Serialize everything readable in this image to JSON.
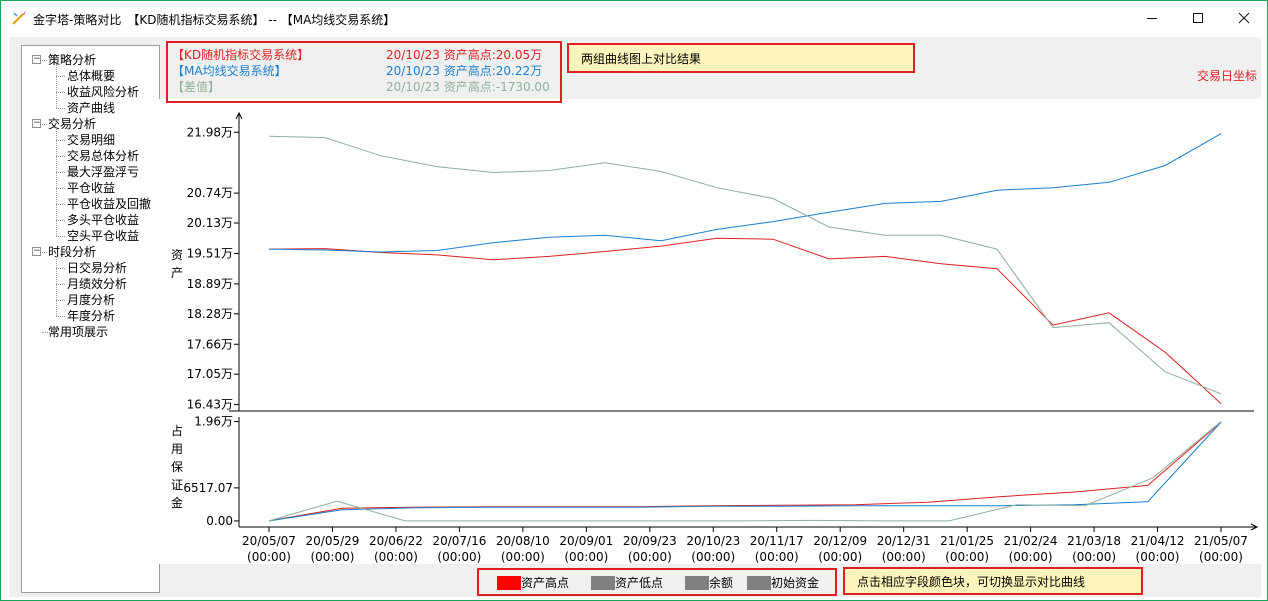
{
  "window": {
    "title": "金字塔-策略对比　【KD随机指标交易系统】 -- 【MA均线交易系统】"
  },
  "tree": {
    "groups": [
      {
        "label": "策略分析",
        "expanded": true,
        "children": [
          "总体概要",
          "收益风险分析",
          "资产曲线"
        ]
      },
      {
        "label": "交易分析",
        "expanded": true,
        "children": [
          "交易明细",
          "交易总体分析",
          "最大浮盈浮亏",
          "平仓收益",
          "平仓收益及回撤",
          "多头平仓收益",
          "空头平仓收益"
        ]
      },
      {
        "label": "时段分析",
        "expanded": true,
        "children": [
          "日交易分析",
          "月绩效分析",
          "月度分析",
          "年度分析"
        ]
      },
      {
        "label": "常用项展示",
        "expanded": false,
        "children": []
      }
    ]
  },
  "info": {
    "rows": [
      {
        "name": "【KD随机指标交易系统】",
        "value": "20/10/23 资产高点:20.05万",
        "color": "#e02020"
      },
      {
        "name": "【MA均线交易系统】",
        "value": "20/10/23 资产高点:20.22万",
        "color": "#1a7fd0"
      },
      {
        "name": "【差值】",
        "value": "20/10/23 资产高点:-1730.00",
        "color": "#8fb09a"
      }
    ]
  },
  "notes": {
    "top": "两组曲线图上对比结果",
    "bottom": "点击相应字段颜色块，可切换显示对比曲线"
  },
  "axis_mode_label": "交易日坐标",
  "legend": [
    {
      "label": "资产高点",
      "color": "#ff0000"
    },
    {
      "label": "资产低点",
      "color": "#808080"
    },
    {
      "label": "余额",
      "color": "#808080"
    },
    {
      "label": "初始资金",
      "color": "#808080"
    }
  ],
  "chart_data": [
    {
      "type": "line",
      "ylabel": "资产",
      "y_ticks": [
        "21.98万",
        "20.74万",
        "20.13万",
        "19.51万",
        "18.89万",
        "18.28万",
        "17.66万",
        "17.05万",
        "16.43万"
      ],
      "y_tick_values": [
        219800,
        207400,
        201300,
        195100,
        188900,
        182800,
        176600,
        170500,
        164300
      ],
      "ylim": [
        163000,
        222500
      ],
      "x_labels": [
        "20/05/07",
        "20/05/29",
        "20/06/22",
        "20/07/16",
        "20/08/10",
        "20/09/01",
        "20/09/23",
        "20/10/23",
        "20/11/17",
        "20/12/09",
        "20/12/31",
        "21/01/25",
        "21/02/24",
        "21/03/18",
        "21/04/12",
        "21/05/07"
      ],
      "x_sublabel": "(00:00)",
      "series": [
        {
          "name": "【KD随机指标交易系统】",
          "color": "#e02020",
          "values": [
            196000,
            196100,
            195300,
            194800,
            193800,
            194500,
            195500,
            196600,
            198200,
            198000,
            194000,
            194500,
            193000,
            192000,
            180500,
            183000,
            175000,
            164500
          ]
        },
        {
          "name": "【MA均线交易系统】",
          "color": "#1a7fd0",
          "values": [
            196000,
            195800,
            195400,
            195700,
            197300,
            198400,
            198800,
            197700,
            200000,
            201600,
            203500,
            205300,
            205700,
            208000,
            208500,
            209600,
            213000,
            219500
          ]
        },
        {
          "name": "【差值】",
          "color": "#8fb09a",
          "values": [
            219000,
            218700,
            215000,
            212800,
            211600,
            212000,
            213600,
            211800,
            208500,
            206300,
            200500,
            198800,
            198800,
            196000,
            180000,
            181000,
            171000,
            166500
          ]
        }
      ]
    },
    {
      "type": "line",
      "ylabel": "占用保证金",
      "y_ticks": [
        "1.96万",
        "6517.07",
        "0.00"
      ],
      "y_tick_values": [
        19600,
        6517.07,
        0
      ],
      "ylim": [
        -1200,
        20500
      ],
      "series": [
        {
          "name": "【KD随机指标交易系统】",
          "color": "#e02020",
          "values": [
            0,
            2500,
            2700,
            2800,
            2800,
            2800,
            3000,
            3100,
            3200,
            3700,
            4800,
            5700,
            7000,
            19500
          ]
        },
        {
          "name": "【MA均线交易系统】",
          "color": "#1a7fd0",
          "values": [
            0,
            2200,
            2600,
            2700,
            2700,
            2700,
            2900,
            2900,
            3000,
            3000,
            3000,
            3200,
            3800,
            19500
          ]
        },
        {
          "name": "【差值】",
          "color": "#8fb09a",
          "values": [
            0,
            3900,
            0,
            0,
            0,
            0,
            0,
            0,
            100,
            0,
            0,
            3200,
            3000,
            8500,
            19600
          ]
        }
      ]
    }
  ]
}
